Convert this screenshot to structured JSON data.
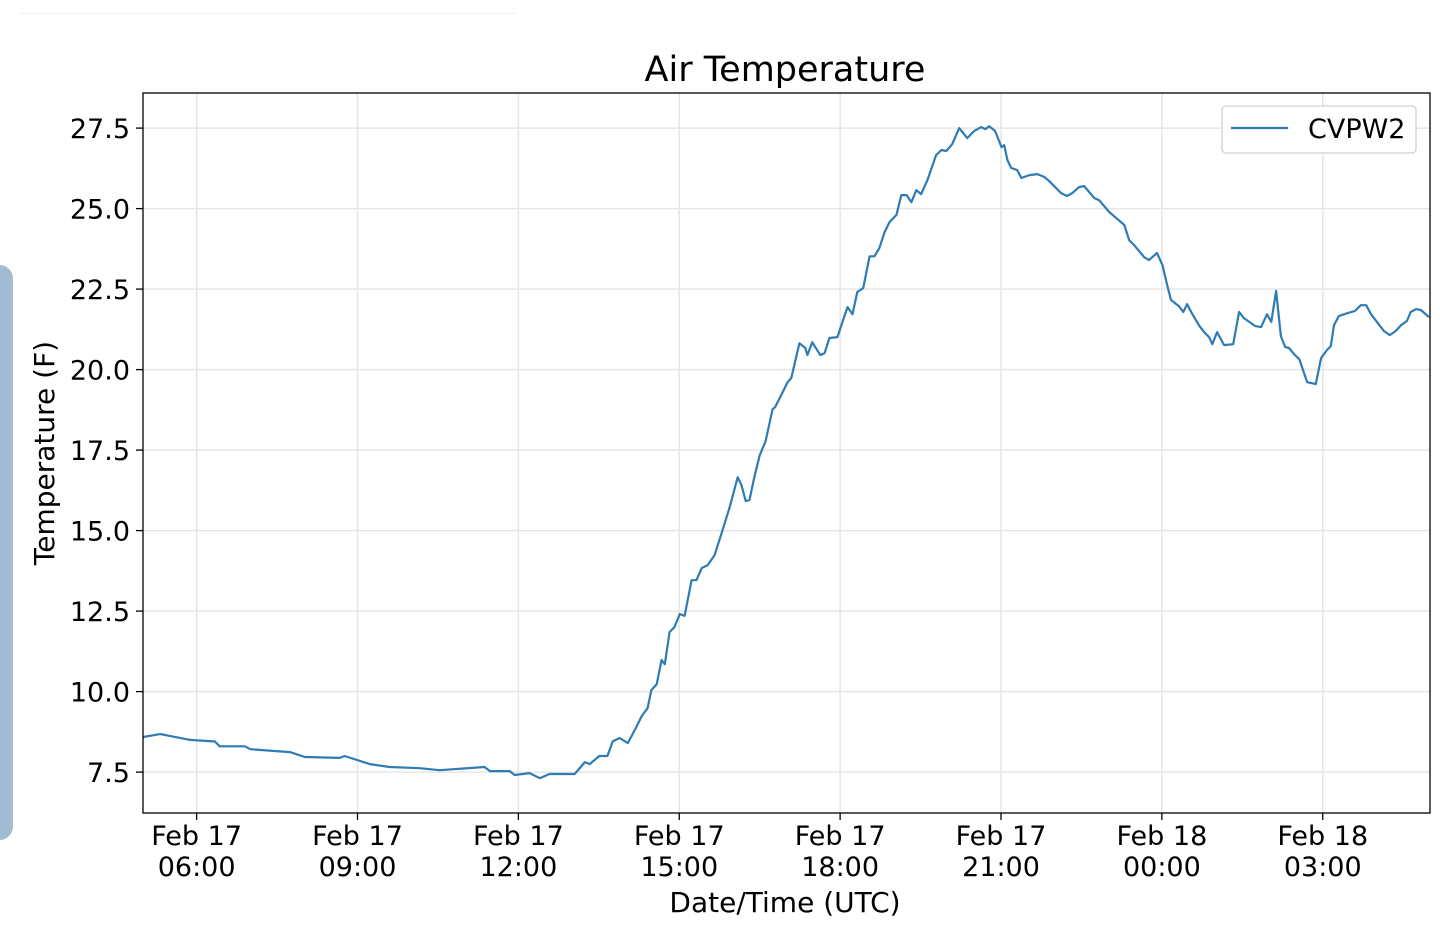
{
  "chart_data": {
    "type": "line",
    "title": "Air Temperature",
    "xlabel": "Date/Time (UTC)",
    "ylabel": "Temperature (F)",
    "x_units": "hours since Feb 17 05:00 UTC",
    "xlim": [
      0,
      24
    ],
    "ylim": [
      6.23,
      28.59
    ],
    "grid": true,
    "legend_position": "top-right",
    "x_ticks": [
      {
        "value": 1,
        "label": [
          "Feb 17",
          "06:00"
        ]
      },
      {
        "value": 4,
        "label": [
          "Feb 17",
          "09:00"
        ]
      },
      {
        "value": 7,
        "label": [
          "Feb 17",
          "12:00"
        ]
      },
      {
        "value": 10,
        "label": [
          "Feb 17",
          "15:00"
        ]
      },
      {
        "value": 13,
        "label": [
          "Feb 17",
          "18:00"
        ]
      },
      {
        "value": 16,
        "label": [
          "Feb 17",
          "21:00"
        ]
      },
      {
        "value": 19,
        "label": [
          "Feb 18",
          "00:00"
        ]
      },
      {
        "value": 22,
        "label": [
          "Feb 18",
          "03:00"
        ]
      }
    ],
    "y_ticks": [
      {
        "value": 7.5,
        "label": "7.5"
      },
      {
        "value": 10,
        "label": "10.0"
      },
      {
        "value": 12.5,
        "label": "12.5"
      },
      {
        "value": 15,
        "label": "15.0"
      },
      {
        "value": 17.5,
        "label": "17.5"
      },
      {
        "value": 20,
        "label": "20.0"
      },
      {
        "value": 22.5,
        "label": "22.5"
      },
      {
        "value": 25,
        "label": "25.0"
      },
      {
        "value": 27.5,
        "label": "27.5"
      }
    ],
    "series": [
      {
        "name": "CVPW2",
        "color": "#2f7bb4",
        "x": [
          0,
          0.32,
          0.88,
          1.34,
          1.43,
          1.9,
          2.0,
          2.74,
          3.02,
          3.67,
          3.76,
          4.23,
          4.6,
          5.16,
          5.53,
          6.37,
          6.47,
          6.84,
          6.93,
          7.21,
          7.4,
          7.58,
          8.05,
          8.24,
          8.33,
          8.51,
          8.66,
          8.76,
          8.89,
          9.04,
          9.17,
          9.3,
          9.41,
          9.48,
          9.58,
          9.67,
          9.73,
          9.82,
          9.91,
          10.01,
          10.1,
          10.23,
          10.32,
          10.42,
          10.53,
          10.66,
          10.79,
          10.94,
          11.09,
          11.16,
          11.24,
          11.31,
          11.4,
          11.5,
          11.61,
          11.74,
          11.79,
          11.92,
          12.02,
          12.09,
          12.24,
          12.35,
          12.39,
          12.48,
          12.63,
          12.71,
          12.8,
          12.95,
          13.08,
          13.14,
          13.23,
          13.32,
          13.43,
          13.55,
          13.64,
          13.73,
          13.83,
          13.92,
          14.05,
          14.14,
          14.24,
          14.33,
          14.42,
          14.51,
          14.63,
          14.79,
          14.89,
          14.98,
          15.09,
          15.22,
          15.37,
          15.5,
          15.63,
          15.71,
          15.78,
          15.89,
          16.01,
          16.06,
          16.12,
          16.19,
          16.3,
          16.38,
          16.53,
          16.68,
          16.81,
          16.9,
          17.12,
          17.23,
          17.33,
          17.46,
          17.55,
          17.74,
          17.83,
          18.02,
          18.3,
          18.39,
          18.48,
          18.67,
          18.76,
          18.91,
          19.01,
          19.1,
          19.17,
          19.32,
          19.4,
          19.47,
          19.56,
          19.69,
          19.79,
          19.88,
          19.94,
          20.03,
          20.16,
          20.33,
          20.44,
          20.53,
          20.63,
          20.74,
          20.85,
          20.96,
          21.04,
          21.13,
          21.22,
          21.3,
          21.37,
          21.48,
          21.56,
          21.71,
          21.87,
          21.97,
          22.08,
          22.15,
          22.21,
          22.3,
          22.45,
          22.6,
          22.71,
          22.81,
          22.9,
          23.01,
          23.14,
          23.25,
          23.36,
          23.46,
          23.57,
          23.64,
          23.74,
          23.83,
          23.98
        ],
        "y": [
          8.59,
          8.68,
          8.5,
          8.45,
          8.3,
          8.3,
          8.21,
          8.12,
          7.97,
          7.94,
          8.0,
          7.75,
          7.66,
          7.62,
          7.56,
          7.66,
          7.53,
          7.53,
          7.41,
          7.47,
          7.31,
          7.44,
          7.44,
          7.81,
          7.75,
          8.0,
          8.0,
          8.46,
          8.56,
          8.4,
          8.8,
          9.24,
          9.49,
          10.05,
          10.23,
          10.98,
          10.85,
          11.85,
          12.0,
          12.41,
          12.35,
          13.46,
          13.46,
          13.84,
          13.93,
          14.24,
          14.92,
          15.73,
          16.66,
          16.41,
          15.92,
          15.95,
          16.66,
          17.34,
          17.78,
          18.77,
          18.84,
          19.27,
          19.61,
          19.74,
          20.82,
          20.67,
          20.45,
          20.85,
          20.45,
          20.51,
          20.98,
          21.01,
          21.66,
          21.94,
          21.72,
          22.41,
          22.53,
          23.52,
          23.52,
          23.77,
          24.27,
          24.58,
          24.8,
          25.42,
          25.42,
          25.2,
          25.57,
          25.45,
          25.89,
          26.66,
          26.82,
          26.79,
          27.0,
          27.5,
          27.19,
          27.41,
          27.53,
          27.47,
          27.56,
          27.41,
          26.91,
          26.97,
          26.51,
          26.26,
          26.2,
          25.95,
          26.04,
          26.07,
          25.98,
          25.85,
          25.48,
          25.39,
          25.48,
          25.67,
          25.7,
          25.33,
          25.26,
          24.89,
          24.49,
          24.02,
          23.87,
          23.49,
          23.4,
          23.62,
          23.25,
          22.62,
          22.16,
          21.97,
          21.79,
          22.03,
          21.75,
          21.38,
          21.16,
          21.01,
          20.79,
          21.16,
          20.76,
          20.79,
          21.79,
          21.6,
          21.48,
          21.35,
          21.32,
          21.72,
          21.48,
          22.44,
          21.04,
          20.7,
          20.67,
          20.45,
          20.33,
          19.61,
          19.55,
          20.36,
          20.61,
          20.73,
          21.38,
          21.66,
          21.75,
          21.82,
          22.0,
          22.0,
          21.72,
          21.48,
          21.2,
          21.07,
          21.2,
          21.38,
          21.51,
          21.79,
          21.88,
          21.85,
          21.63
        ]
      }
    ]
  }
}
